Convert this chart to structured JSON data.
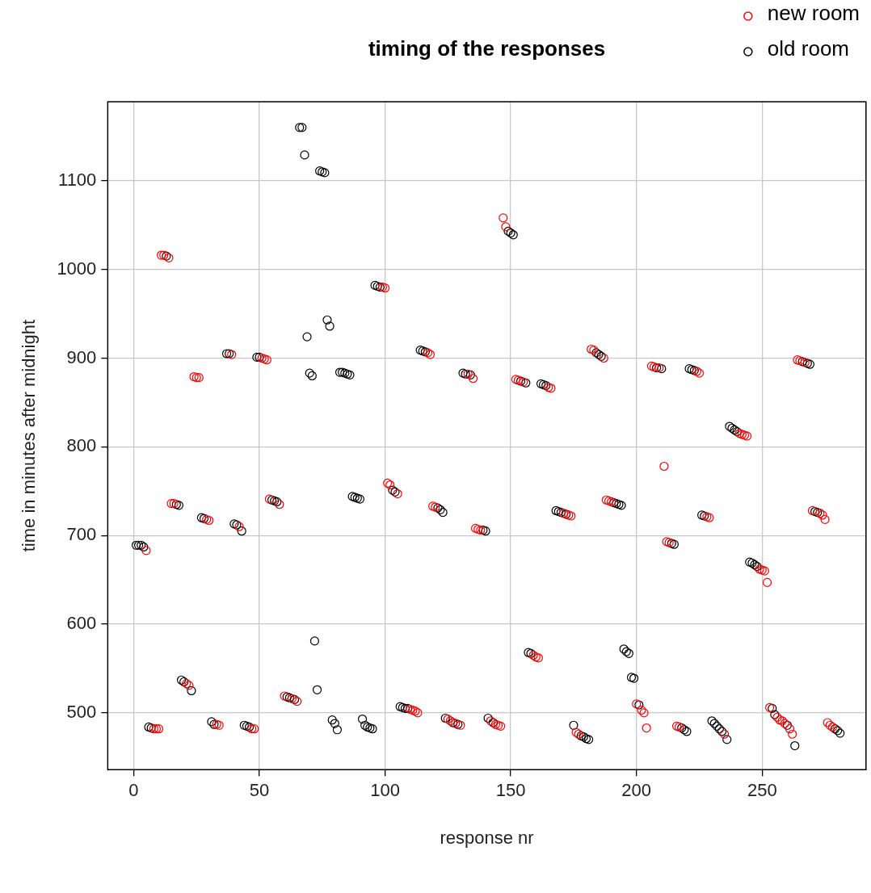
{
  "chart_data": {
    "type": "scatter",
    "title": "timing of the responses",
    "xlabel": "response nr",
    "ylabel": "time in minutes after midnight",
    "xlim": [
      -10.3,
      291.3
    ],
    "ylim": [
      436,
      1189
    ],
    "xticks": [
      0,
      50,
      100,
      150,
      200,
      250
    ],
    "yticks": [
      500,
      600,
      700,
      800,
      900,
      1000,
      1100
    ],
    "grid": true,
    "legend": "top right",
    "marker": "circle",
    "series": [
      {
        "name": "new room",
        "color": "#ff0000",
        "x": [
          5,
          8,
          9,
          10,
          11,
          12,
          14,
          15,
          16,
          21,
          22,
          24,
          25,
          26,
          29,
          30,
          33,
          34,
          39,
          42,
          47,
          48,
          51,
          52,
          53,
          54,
          58,
          60,
          63,
          65,
          99,
          100,
          101,
          102,
          105,
          110,
          111,
          112,
          113,
          117,
          118,
          119,
          120,
          125,
          126,
          128,
          130,
          133,
          135,
          136,
          137,
          138,
          142,
          144,
          145,
          146,
          147,
          148,
          152,
          153,
          155,
          159,
          160,
          161,
          165,
          166,
          171,
          173,
          174,
          176,
          177,
          182,
          183,
          187,
          188,
          189,
          190,
          200,
          202,
          203,
          204,
          206,
          207,
          209,
          211,
          212,
          213,
          216,
          217,
          224,
          225,
          228,
          229,
          235,
          241,
          242,
          243,
          244,
          249,
          250,
          251,
          252,
          253,
          256,
          257,
          258,
          259,
          261,
          262,
          264,
          265,
          267,
          270,
          273,
          274,
          275,
          276,
          277,
          278
        ],
        "values": [
          683,
          482,
          482,
          482,
          1016,
          1016,
          1013,
          736,
          736,
          533,
          531,
          879,
          878,
          878,
          718,
          717,
          487,
          486,
          904,
          710,
          482,
          482,
          900,
          899,
          898,
          741,
          735,
          519,
          516,
          513,
          980,
          979,
          759,
          757,
          747,
          504,
          503,
          502,
          500,
          906,
          904,
          733,
          732,
          493,
          491,
          488,
          486,
          882,
          877,
          708,
          707,
          706,
          491,
          487,
          486,
          485,
          1058,
          1048,
          876,
          875,
          873,
          565,
          563,
          562,
          867,
          866,
          725,
          723,
          722,
          478,
          476,
          910,
          909,
          900,
          740,
          739,
          738,
          510,
          503,
          500,
          483,
          891,
          890,
          889,
          778,
          693,
          692,
          485,
          484,
          885,
          883,
          721,
          720,
          476,
          815,
          814,
          813,
          812,
          662,
          661,
          660,
          647,
          506,
          495,
          492,
          491,
          488,
          482,
          476,
          898,
          897,
          895,
          728,
          725,
          723,
          718,
          489,
          486,
          484
        ]
      },
      {
        "name": "old room",
        "color": "#000000",
        "x": [
          1,
          2,
          3,
          4,
          6,
          7,
          13,
          17,
          18,
          19,
          20,
          23,
          27,
          28,
          31,
          32,
          37,
          38,
          40,
          41,
          43,
          44,
          45,
          46,
          49,
          50,
          55,
          56,
          57,
          61,
          62,
          64,
          66,
          67,
          68,
          69,
          70,
          71,
          72,
          73,
          74,
          75,
          76,
          77,
          78,
          79,
          80,
          81,
          82,
          83,
          84,
          85,
          86,
          87,
          88,
          89,
          90,
          91,
          92,
          93,
          94,
          95,
          96,
          97,
          98,
          103,
          104,
          106,
          107,
          108,
          109,
          114,
          115,
          116,
          121,
          122,
          123,
          124,
          127,
          129,
          131,
          132,
          134,
          139,
          140,
          141,
          143,
          149,
          150,
          151,
          154,
          156,
          157,
          158,
          162,
          163,
          164,
          168,
          169,
          170,
          172,
          175,
          178,
          179,
          180,
          181,
          184,
          185,
          186,
          191,
          192,
          193,
          194,
          195,
          196,
          197,
          198,
          199,
          201,
          208,
          210,
          214,
          215,
          218,
          219,
          220,
          221,
          222,
          223,
          226,
          227,
          230,
          231,
          232,
          233,
          234,
          236,
          237,
          238,
          239,
          240,
          245,
          246,
          247,
          248,
          254,
          255,
          260,
          263,
          266,
          268,
          269,
          271,
          272,
          279,
          280,
          281
        ],
        "values": [
          689,
          689,
          689,
          687,
          484,
          483,
          1015,
          735,
          734,
          537,
          535,
          525,
          720,
          719,
          490,
          487,
          905,
          905,
          713,
          712,
          705,
          486,
          485,
          484,
          901,
          901,
          740,
          739,
          738,
          518,
          517,
          515,
          1160,
          1160,
          1129,
          924,
          883,
          880,
          581,
          526,
          1111,
          1110,
          1109,
          943,
          936,
          492,
          488,
          481,
          884,
          884,
          883,
          882,
          881,
          744,
          743,
          742,
          741,
          493,
          486,
          484,
          483,
          482,
          982,
          981,
          980,
          751,
          749,
          507,
          506,
          505,
          505,
          909,
          908,
          907,
          731,
          729,
          726,
          494,
          489,
          487,
          883,
          882,
          881,
          706,
          705,
          494,
          489,
          1043,
          1041,
          1039,
          874,
          872,
          568,
          567,
          871,
          870,
          869,
          728,
          727,
          726,
          724,
          486,
          474,
          473,
          471,
          470,
          906,
          904,
          902,
          737,
          736,
          735,
          734,
          572,
          569,
          567,
          540,
          539,
          509,
          889,
          888,
          691,
          690,
          483,
          481,
          479,
          888,
          887,
          886,
          723,
          722,
          491,
          488,
          485,
          482,
          479,
          470,
          823,
          821,
          819,
          817,
          670,
          669,
          667,
          665,
          505,
          498,
          486,
          463,
          896,
          894,
          893,
          727,
          726,
          482,
          480,
          477
        ]
      }
    ]
  }
}
